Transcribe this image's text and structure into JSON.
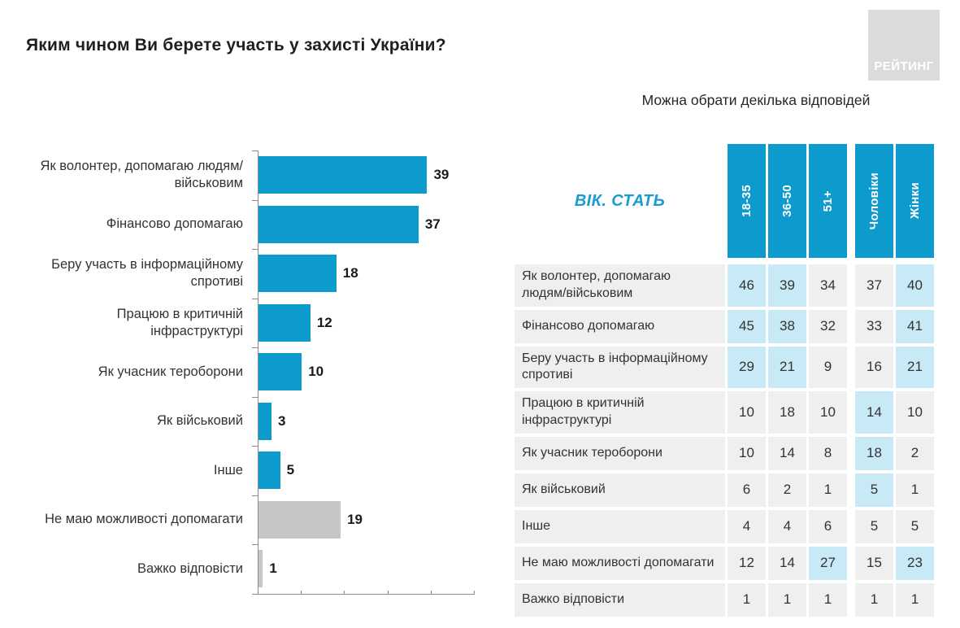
{
  "page": {
    "title": "Яким чином Ви берете участь у захисті України?",
    "subtitle": "Можна обрати декілька відповідей",
    "logo_text": "РЕЙТИНГ"
  },
  "colors": {
    "bar_blue": "#0d9acc",
    "bar_gray": "#c6c6c7",
    "header_blue": "#0d9acc",
    "cell_default": "#efefef",
    "cell_highlight": "#c8e9f6",
    "label_bg": "#efefef",
    "axis_gray": "#8c8c8c",
    "logo_bg": "#dbdbdb",
    "accent_text_blue": "#1b9cd0"
  },
  "chart_data": {
    "type": "bar",
    "orientation": "horizontal",
    "title": "Яким чином Ви берете участь у захисті України?",
    "note": "Можна обрати декілька відповідей",
    "categories": [
      "Як волонтер, допомагаю людям/військовим",
      "Фінансово допомагаю",
      "Беру участь в інформаційному спротиві",
      "Працюю в критичній інфраструктурі",
      "Як учасник тероборони",
      "Як військовий",
      "Інше",
      "Не маю можливості допомагати",
      "Важко відповісти"
    ],
    "values": [
      39,
      37,
      18,
      12,
      10,
      3,
      5,
      19,
      1
    ],
    "bar_colors": [
      "blue",
      "blue",
      "blue",
      "blue",
      "blue",
      "blue",
      "blue",
      "gray",
      "gray"
    ],
    "data_labels": true,
    "xlim": [
      0,
      50
    ],
    "x_ticks": [
      0,
      10,
      20,
      30,
      40,
      50
    ],
    "x_tick_labels_visible": false,
    "grid": false,
    "legend": false
  },
  "table": {
    "header_label": "ВІК. СТАТЬ",
    "columns": [
      "18-35",
      "36-50",
      "51+",
      "Чоловіки",
      "Жінки"
    ],
    "column_groups": [
      [
        "18-35",
        "36-50",
        "51+"
      ],
      [
        "Чоловіки",
        "Жінки"
      ]
    ],
    "rows": [
      {
        "label": "Як волонтер, допомагаю людям/військовим",
        "values": [
          46,
          39,
          34,
          37,
          40
        ],
        "highlight": [
          true,
          true,
          false,
          false,
          true
        ]
      },
      {
        "label": "Фінансово допомагаю",
        "values": [
          45,
          38,
          32,
          33,
          41
        ],
        "highlight": [
          true,
          true,
          false,
          false,
          true
        ]
      },
      {
        "label": "Беру участь в інформаційному спротиві",
        "values": [
          29,
          21,
          9,
          16,
          21
        ],
        "highlight": [
          true,
          true,
          false,
          false,
          true
        ]
      },
      {
        "label": "Працюю в критичній інфраструктурі",
        "values": [
          10,
          18,
          10,
          14,
          10
        ],
        "highlight": [
          false,
          false,
          false,
          true,
          false
        ]
      },
      {
        "label": "Як учасник тероборони",
        "values": [
          10,
          14,
          8,
          18,
          2
        ],
        "highlight": [
          false,
          false,
          false,
          true,
          false
        ]
      },
      {
        "label": "Як військовий",
        "values": [
          6,
          2,
          1,
          5,
          1
        ],
        "highlight": [
          false,
          false,
          false,
          true,
          false
        ]
      },
      {
        "label": "Інше",
        "values": [
          4,
          4,
          6,
          5,
          5
        ],
        "highlight": [
          false,
          false,
          false,
          false,
          false
        ]
      },
      {
        "label": "Не маю можливості допомагати",
        "values": [
          12,
          14,
          27,
          15,
          23
        ],
        "highlight": [
          false,
          false,
          true,
          false,
          true
        ]
      },
      {
        "label": "Важко відповісти",
        "values": [
          1,
          1,
          1,
          1,
          1
        ],
        "highlight": [
          false,
          false,
          false,
          false,
          false
        ]
      }
    ]
  }
}
